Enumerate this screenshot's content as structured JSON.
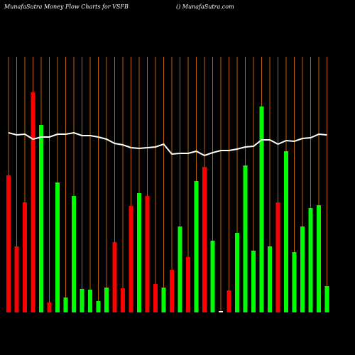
{
  "chart_data": {
    "type": "bar",
    "title": "MunafaSutra  Money Flow  Charts for VSFB",
    "subtitle": "() MunafaSutra.com",
    "ylim": [
      0,
      360
    ],
    "categories": [
      null,
      null,
      null,
      null,
      null,
      null,
      null,
      null,
      null,
      null,
      null,
      null,
      null,
      null,
      null,
      null,
      null,
      null,
      null,
      null,
      null,
      null,
      null,
      null,
      null,
      null,
      null,
      null,
      null,
      null,
      null,
      null,
      null,
      null,
      null,
      null,
      null,
      null,
      null,
      null
    ],
    "series": [
      {
        "values": [
          193,
          93,
          155,
          310,
          264,
          14,
          183,
          21,
          164,
          33,
          32,
          16,
          35,
          99,
          34,
          150,
          168,
          164,
          40,
          35,
          60,
          121,
          78,
          185,
          205,
          101,
          2,
          31,
          112,
          207,
          87,
          290,
          93,
          155,
          227,
          85,
          121,
          147,
          151,
          37
        ],
        "colors": [
          "#ff0000",
          "#ff0000",
          "#ff0000",
          "#ff0000",
          "#00ff00",
          "#ff0000",
          "#00ff00",
          "#00ff00",
          "#00ff00",
          "#00ff00",
          "#00ff00",
          "#00ff00",
          "#00ff00",
          "#ff0000",
          "#ff0000",
          "#ff0000",
          "#00ff00",
          "#ff0000",
          "#ff0000",
          "#00ff00",
          "#ff0000",
          "#00ff00",
          "#ff0000",
          "#00ff00",
          "#ff0000",
          "#00ff00",
          "#ffffff",
          "#ff0000",
          "#00ff00",
          "#00ff00",
          "#00ff00",
          "#00ff00",
          "#00ff00",
          "#ff0000",
          "#00ff00",
          "#00ff00",
          "#00ff00",
          "#00ff00",
          "#00ff00",
          "#00ff00"
        ]
      },
      {
        "type": "line",
        "color": "#ffffff",
        "values": [
          253,
          250,
          251,
          244,
          247,
          247,
          251,
          251,
          253,
          249,
          249,
          247,
          244,
          238,
          236,
          232,
          231,
          232,
          233,
          237,
          223,
          224,
          224,
          227,
          221,
          225,
          228,
          228,
          230,
          233,
          234,
          243,
          243,
          237,
          242,
          241,
          245,
          246,
          251,
          250
        ]
      }
    ]
  }
}
